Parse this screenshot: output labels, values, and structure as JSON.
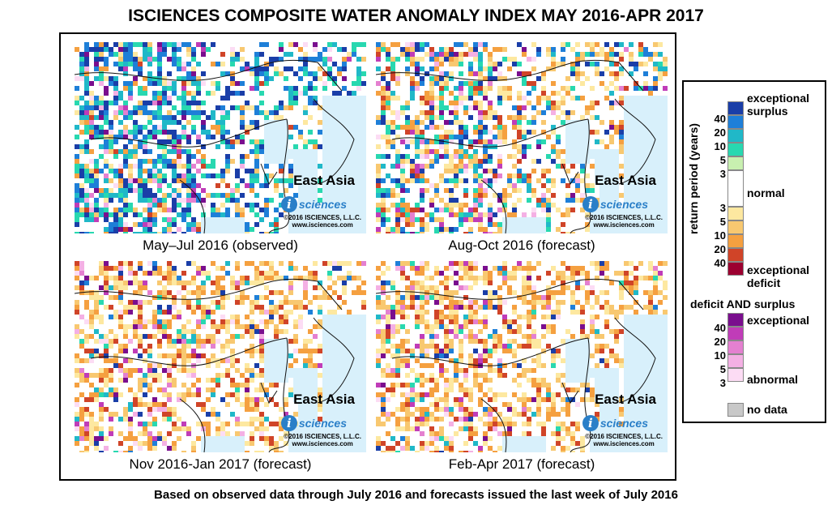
{
  "title": "ISCIENCES COMPOSITE WATER ANOMALY INDEX MAY 2016-APR 2017",
  "footer": "Based on observed data through July 2016 and forecasts issued the last week of July 2016",
  "panels": [
    {
      "caption": "May–Jul 2016 (observed)",
      "region": "East Asia",
      "logo_i": "i",
      "logo_text": "sciences",
      "copyright": "©2016 ISCIENCES, L.L.C.",
      "url": "www.isciences.com",
      "surplus_level": 0.7,
      "deficit_level": 0.2
    },
    {
      "caption": "Aug-Oct 2016 (forecast)",
      "region": "East Asia",
      "logo_i": "i",
      "logo_text": "sciences",
      "copyright": "©2016 ISCIENCES, L.L.C.",
      "url": "www.isciences.com",
      "surplus_level": 0.35,
      "deficit_level": 0.5
    },
    {
      "caption": "Nov 2016-Jan 2017 (forecast)",
      "region": "East Asia",
      "logo_i": "i",
      "logo_text": "sciences",
      "copyright": "©2016 ISCIENCES, L.L.C.",
      "url": "www.isciences.com",
      "surplus_level": 0.1,
      "deficit_level": 0.7
    },
    {
      "caption": "Feb-Apr 2017 (forecast)",
      "region": "East Asia",
      "logo_i": "i",
      "logo_text": "sciences",
      "copyright": "©2016 ISCIENCES, L.L.C.",
      "url": "www.isciences.com",
      "surplus_level": 0.08,
      "deficit_level": 0.75
    }
  ],
  "legend": {
    "axis_label": "return period (years)",
    "top_label_1": "exceptional",
    "top_label_2": "surplus",
    "normal_label": "normal",
    "deficit_label_1": "exceptional",
    "deficit_label_2": "deficit",
    "both_title": "deficit AND surplus",
    "both_label_top": "exceptional",
    "both_label_bottom": "abnormal",
    "no_data_label": "no data",
    "surplus_numbers": [
      "40",
      "20",
      "10",
      "5",
      "3"
    ],
    "deficit_numbers": [
      "3",
      "5",
      "10",
      "20",
      "40"
    ],
    "both_numbers": [
      "40",
      "20",
      "10",
      "5",
      "3"
    ],
    "colors": {
      "surplus": [
        "#1a3ea8",
        "#1e7fd8",
        "#20b8c8",
        "#28d8b0",
        "#c8f0b0"
      ],
      "normal": "#ffffff",
      "deficit": [
        "#fde8a0",
        "#f8c870",
        "#f5a040",
        "#d04428",
        "#9c0030"
      ],
      "both": [
        "#7a0e8e",
        "#c03cb8",
        "#e480d0",
        "#f4b0e4",
        "#fcdcf4"
      ],
      "no_data": "#c8c8c8",
      "water": "#d8f0fb"
    }
  }
}
